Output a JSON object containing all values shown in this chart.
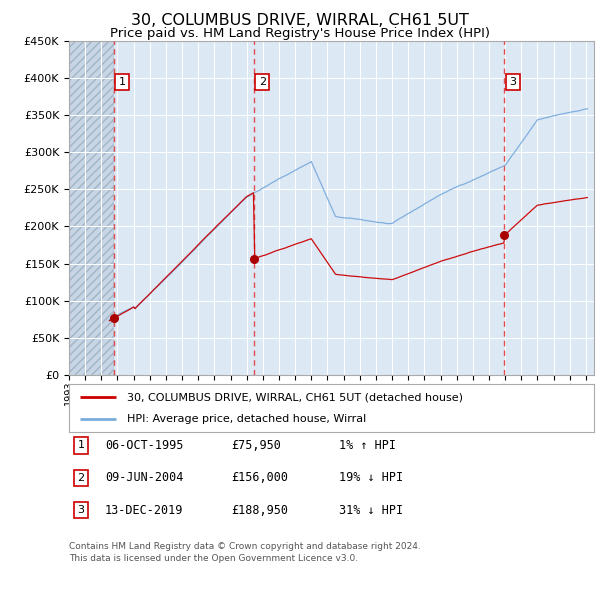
{
  "title": "30, COLUMBUS DRIVE, WIRRAL, CH61 5UT",
  "subtitle": "Price paid vs. HM Land Registry's House Price Index (HPI)",
  "title_fontsize": 12,
  "subtitle_fontsize": 10,
  "ylim": [
    0,
    450000
  ],
  "yticks": [
    0,
    50000,
    100000,
    150000,
    200000,
    250000,
    300000,
    350000,
    400000,
    450000
  ],
  "ytick_labels": [
    "£0",
    "£50K",
    "£100K",
    "£150K",
    "£200K",
    "£250K",
    "£300K",
    "£350K",
    "£400K",
    "£450K"
  ],
  "xlim_start": 1993.0,
  "xlim_end": 2025.5,
  "xtick_years": [
    1993,
    1994,
    1995,
    1996,
    1997,
    1998,
    1999,
    2000,
    2001,
    2002,
    2003,
    2004,
    2005,
    2006,
    2007,
    2008,
    2009,
    2010,
    2011,
    2012,
    2013,
    2014,
    2015,
    2016,
    2017,
    2018,
    2019,
    2020,
    2021,
    2022,
    2023,
    2024,
    2025
  ],
  "sale1_x": 1995.77,
  "sale1_y": 75950,
  "sale1_label": "1",
  "sale1_date": "06-OCT-1995",
  "sale1_price": "£75,950",
  "sale1_hpi": "1% ↑ HPI",
  "sale2_x": 2004.44,
  "sale2_y": 156000,
  "sale2_label": "2",
  "sale2_date": "09-JUN-2004",
  "sale2_price": "£156,000",
  "sale2_hpi": "19% ↓ HPI",
  "sale3_x": 2019.95,
  "sale3_y": 188950,
  "sale3_label": "3",
  "sale3_date": "13-DEC-2019",
  "sale3_price": "£188,950",
  "sale3_hpi": "31% ↓ HPI",
  "hpi_line_color": "#7aacdc",
  "sale_line_color": "#cc0000",
  "marker_color": "#aa0000",
  "dashed_line_color": "#dd3333",
  "bg_color": "#dde8f5",
  "hatch_bg_color": "#c8d5e5",
  "grid_color": "#ffffff",
  "legend_label1": "30, COLUMBUS DRIVE, WIRRAL, CH61 5UT (detached house)",
  "legend_label2": "HPI: Average price, detached house, Wirral",
  "footer": "Contains HM Land Registry data © Crown copyright and database right 2024.\nThis data is licensed under the Open Government Licence v3.0."
}
